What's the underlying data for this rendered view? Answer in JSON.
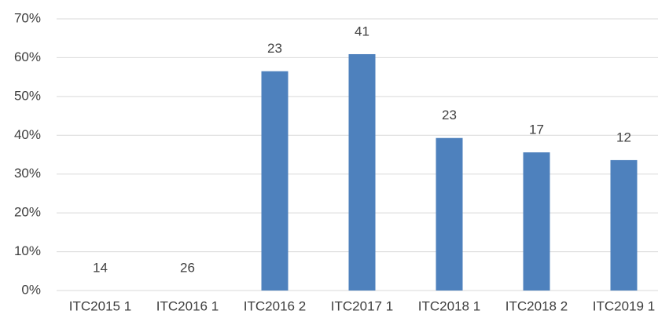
{
  "chart_data": {
    "type": "bar",
    "categories": [
      "ITC2015 1",
      "ITC2016 1",
      "ITC2016 2",
      "ITC2017 1",
      "ITC2018 1",
      "ITC2018 2",
      "ITC2019 1"
    ],
    "values": [
      0,
      0,
      56.5,
      60.9,
      39.3,
      35.6,
      33.6
    ],
    "annotations": [
      "14",
      "26",
      "23",
      "41",
      "23",
      "17",
      "12"
    ],
    "color": "#4e81bd",
    "ylim": [
      0,
      70
    ],
    "yticks": [
      {
        "value": 0,
        "label": "0%"
      },
      {
        "value": 10,
        "label": "10%"
      },
      {
        "value": 20,
        "label": "20%"
      },
      {
        "value": 30,
        "label": "30%"
      },
      {
        "value": 40,
        "label": "40%"
      },
      {
        "value": 50,
        "label": "50%"
      },
      {
        "value": 60,
        "label": "60%"
      },
      {
        "value": 70,
        "label": "70%"
      }
    ],
    "grid": true
  }
}
